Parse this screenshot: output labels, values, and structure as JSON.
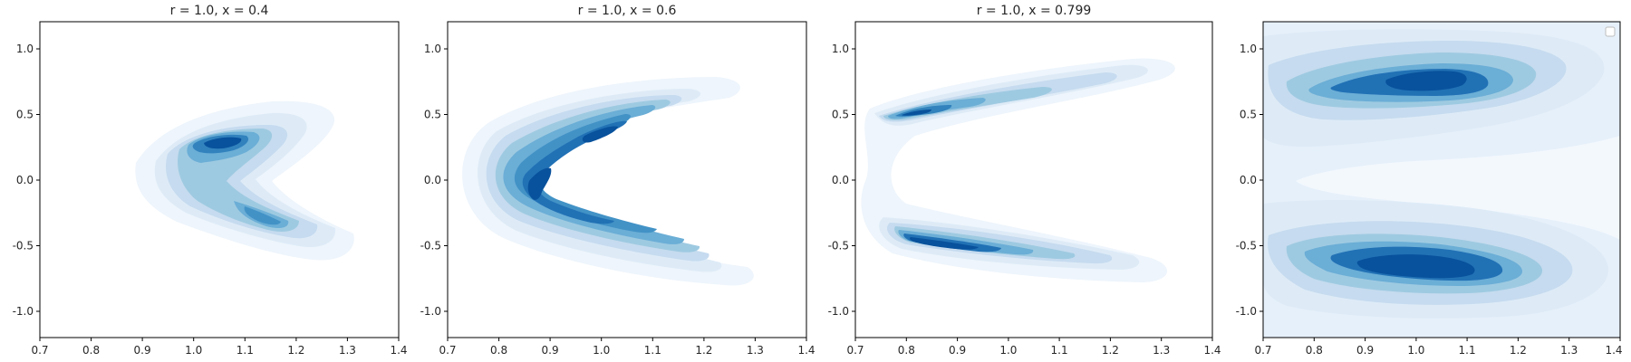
{
  "chart_data": [
    {
      "type": "kde_contour",
      "title": "r = 1.0, x = 0.4",
      "xlabel": "",
      "ylabel": "",
      "xlim": [
        0.7,
        1.4
      ],
      "ylim": [
        -1.2,
        1.2
      ],
      "xticks": [
        "0.7",
        "0.8",
        "0.9",
        "1.0",
        "1.1",
        "1.2",
        "1.3",
        "1.4"
      ],
      "yticks": [
        "-1.0",
        "-0.5",
        "0.0",
        "0.5",
        "1.0"
      ],
      "colormap": "Blues",
      "grid": false,
      "legend": null,
      "density_peaks": [
        {
          "x": 1.05,
          "y": 0.25,
          "weight": 1.0
        },
        {
          "x": 1.13,
          "y": -0.3,
          "weight": 0.75
        },
        {
          "x": 1.2,
          "y": -0.38,
          "weight": 0.6
        }
      ]
    },
    {
      "type": "kde_contour",
      "title": "r = 1.0, x = 0.6",
      "xlabel": "",
      "ylabel": "",
      "xlim": [
        0.7,
        1.4
      ],
      "ylim": [
        -1.2,
        1.2
      ],
      "xticks": [
        "0.7",
        "0.8",
        "0.9",
        "1.0",
        "1.1",
        "1.2",
        "1.3",
        "1.4"
      ],
      "yticks": [
        "-1.0",
        "-0.5",
        "0.0",
        "0.5",
        "1.0"
      ],
      "colormap": "Blues",
      "grid": false,
      "legend": null,
      "density_peaks": [
        {
          "x": 0.9,
          "y": 0.38,
          "weight": 1.0
        },
        {
          "x": 0.76,
          "y": -0.15,
          "weight": 0.95
        },
        {
          "x": 1.0,
          "y": -0.55,
          "weight": 0.8
        }
      ]
    },
    {
      "type": "kde_contour",
      "title": "r = 1.0, x = 0.799",
      "xlabel": "",
      "ylabel": "",
      "xlim": [
        0.7,
        1.4
      ],
      "ylim": [
        -1.2,
        1.2
      ],
      "xticks": [
        "0.7",
        "0.8",
        "0.9",
        "1.0",
        "1.1",
        "1.2",
        "1.3",
        "1.4"
      ],
      "yticks": [
        "-1.0",
        "-0.5",
        "0.0",
        "0.5",
        "1.0"
      ],
      "colormap": "Blues",
      "grid": false,
      "legend": null,
      "density_peaks": [
        {
          "x": 0.85,
          "y": 0.48,
          "weight": 1.0
        },
        {
          "x": 0.9,
          "y": -0.55,
          "weight": 1.0
        },
        {
          "x": 1.05,
          "y": 0.65,
          "weight": 0.55
        }
      ]
    },
    {
      "type": "kde_contour",
      "title": "",
      "xlabel": "",
      "ylabel": "",
      "xlim": [
        0.7,
        1.4
      ],
      "ylim": [
        -1.2,
        1.2
      ],
      "xticks": [
        "0.7",
        "0.8",
        "0.9",
        "1.0",
        "1.1",
        "1.2",
        "1.3",
        "1.4"
      ],
      "yticks": [
        "-1.0",
        "-0.5",
        "0.0",
        "0.5",
        "1.0"
      ],
      "colormap": "Blues",
      "grid": false,
      "legend": "top-right (empty)",
      "density_peaks": [
        {
          "x": 0.97,
          "y": 0.75,
          "weight": 1.0
        },
        {
          "x": 0.95,
          "y": -0.7,
          "weight": 1.0
        }
      ]
    }
  ]
}
